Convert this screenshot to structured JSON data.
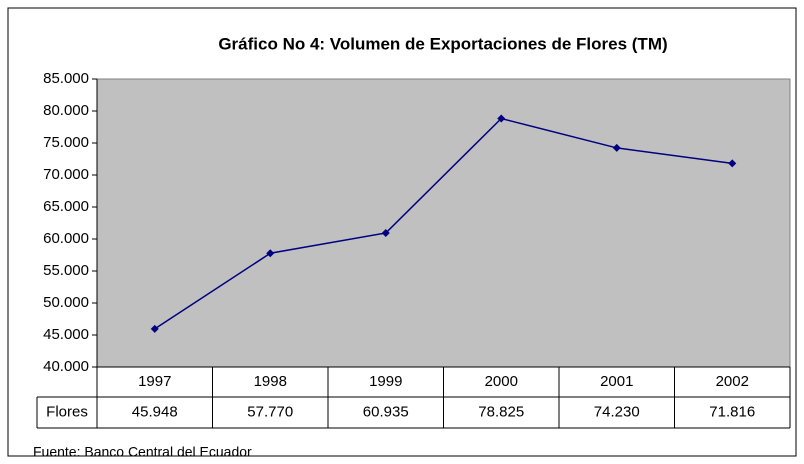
{
  "chart_data": {
    "type": "line",
    "title": "Gráfico No 4: Volumen de Exportaciones de Flores (TM)",
    "categories": [
      "1997",
      "1998",
      "1999",
      "2000",
      "2001",
      "2002"
    ],
    "series": [
      {
        "name": "Flores",
        "color": "#000080",
        "values": [
          45948,
          57770,
          60935,
          78825,
          74230,
          71816
        ],
        "value_labels": [
          "45.948",
          "57.770",
          "60.935",
          "78.825",
          "74.230",
          "71.816"
        ]
      }
    ],
    "ylim": [
      40000,
      85000
    ],
    "yticks": [
      {
        "value": 40000,
        "label": "40.000"
      },
      {
        "value": 45000,
        "label": "45.000"
      },
      {
        "value": 50000,
        "label": "50.000"
      },
      {
        "value": 55000,
        "label": "55.000"
      },
      {
        "value": 60000,
        "label": "60.000"
      },
      {
        "value": 65000,
        "label": "65.000"
      },
      {
        "value": 70000,
        "label": "70.000"
      },
      {
        "value": 75000,
        "label": "75.000"
      },
      {
        "value": 80000,
        "label": "80.000"
      },
      {
        "value": 85000,
        "label": "85.000"
      }
    ],
    "plot_background": "#c0c0c0",
    "source": "Fuente: Banco Central del Ecuador"
  }
}
